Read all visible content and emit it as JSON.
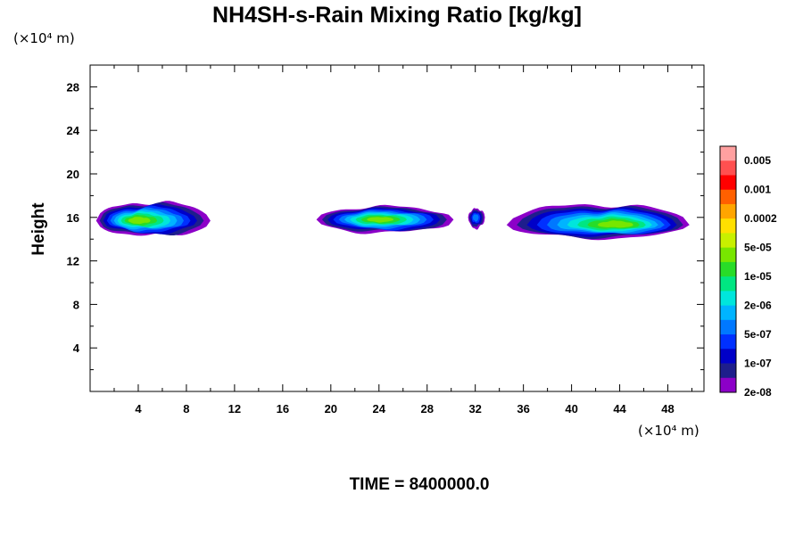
{
  "chart_data": {
    "type": "contour",
    "title": "NH4SH-s-Rain Mixing Ratio [kg/kg]",
    "xlabel": "",
    "ylabel": "Height",
    "x_unit": "(×10⁴ m)",
    "y_unit": "(×10⁴ m)",
    "xlim": [
      0,
      51
    ],
    "ylim": [
      0,
      30
    ],
    "x_ticks": [
      4,
      8,
      12,
      16,
      20,
      24,
      28,
      32,
      36,
      40,
      44,
      48
    ],
    "y_ticks": [
      4,
      8,
      12,
      16,
      20,
      24,
      28
    ],
    "colorbar": {
      "labels": [
        "0.005",
        "0.001",
        "0.0002",
        "5e-05",
        "1e-05",
        "2e-06",
        "5e-07",
        "1e-07",
        "2e-08"
      ],
      "colors": [
        "#ffa0a0",
        "#ff5050",
        "#ff0000",
        "#ff6000",
        "#ffa500",
        "#ffe000",
        "#c8f000",
        "#78e600",
        "#28dc28",
        "#00e682",
        "#00e6dc",
        "#00b4ff",
        "#0078ff",
        "#0030ff",
        "#0000c8",
        "#1e1e8c",
        "#8c00c8"
      ]
    },
    "clouds": [
      {
        "x_range": [
          0.5,
          10.0
        ],
        "top_height": 17.4,
        "base_height": 14.3,
        "peak_level": 9,
        "center": [
          3.8,
          15.7
        ]
      },
      {
        "x_range": [
          18.8,
          30.2
        ],
        "top_height": 17.0,
        "base_height": 14.6,
        "peak_level": 9,
        "center": [
          24.0,
          15.8
        ]
      },
      {
        "x_range": [
          31.4,
          32.8
        ],
        "top_height": 16.8,
        "base_height": 15.0,
        "peak_level": 4,
        "center": [
          32.0,
          16.0
        ]
      },
      {
        "x_range": [
          34.6,
          49.8
        ],
        "top_height": 17.2,
        "base_height": 14.1,
        "peak_level": 9,
        "center": [
          44.0,
          15.3
        ]
      }
    ],
    "footer": "TIME = 8400000.0"
  }
}
